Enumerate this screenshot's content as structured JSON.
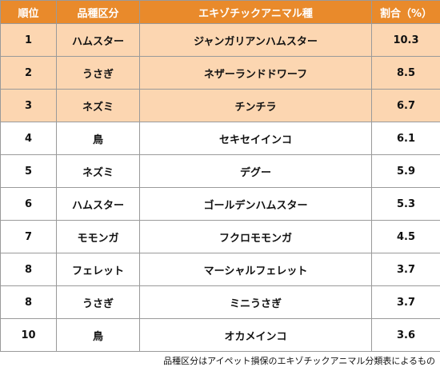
{
  "table": {
    "headers": {
      "rank": "順位",
      "category": "品種区分",
      "animal": "エキゾチックアニマル種",
      "percent": "割合（%）"
    },
    "rows": [
      {
        "rank": "1",
        "category": "ハムスター",
        "animal": "ジャンガリアンハムスター",
        "percent": "10.3",
        "highlight": true
      },
      {
        "rank": "2",
        "category": "うさぎ",
        "animal": "ネザーランドドワーフ",
        "percent": "8.5",
        "highlight": true
      },
      {
        "rank": "3",
        "category": "ネズミ",
        "animal": "チンチラ",
        "percent": "6.7",
        "highlight": true
      },
      {
        "rank": "4",
        "category": "鳥",
        "animal": "セキセイインコ",
        "percent": "6.1",
        "highlight": false
      },
      {
        "rank": "5",
        "category": "ネズミ",
        "animal": "デグー",
        "percent": "5.9",
        "highlight": false
      },
      {
        "rank": "6",
        "category": "ハムスター",
        "animal": "ゴールデンハムスター",
        "percent": "5.3",
        "highlight": false
      },
      {
        "rank": "7",
        "category": "モモンガ",
        "animal": "フクロモモンガ",
        "percent": "4.5",
        "highlight": false
      },
      {
        "rank": "8",
        "category": "フェレット",
        "animal": "マーシャルフェレット",
        "percent": "3.7",
        "highlight": false
      },
      {
        "rank": "8",
        "category": "うさぎ",
        "animal": "ミニうさぎ",
        "percent": "3.7",
        "highlight": false
      },
      {
        "rank": "10",
        "category": "鳥",
        "animal": "オカメインコ",
        "percent": "3.6",
        "highlight": false
      }
    ]
  },
  "colors": {
    "header_bg": "#e98a2b",
    "top3_bg": "#fcd6b1"
  },
  "footnote": "品種区分はアイペット損保のエキゾチックアニマル分類表によるもの"
}
